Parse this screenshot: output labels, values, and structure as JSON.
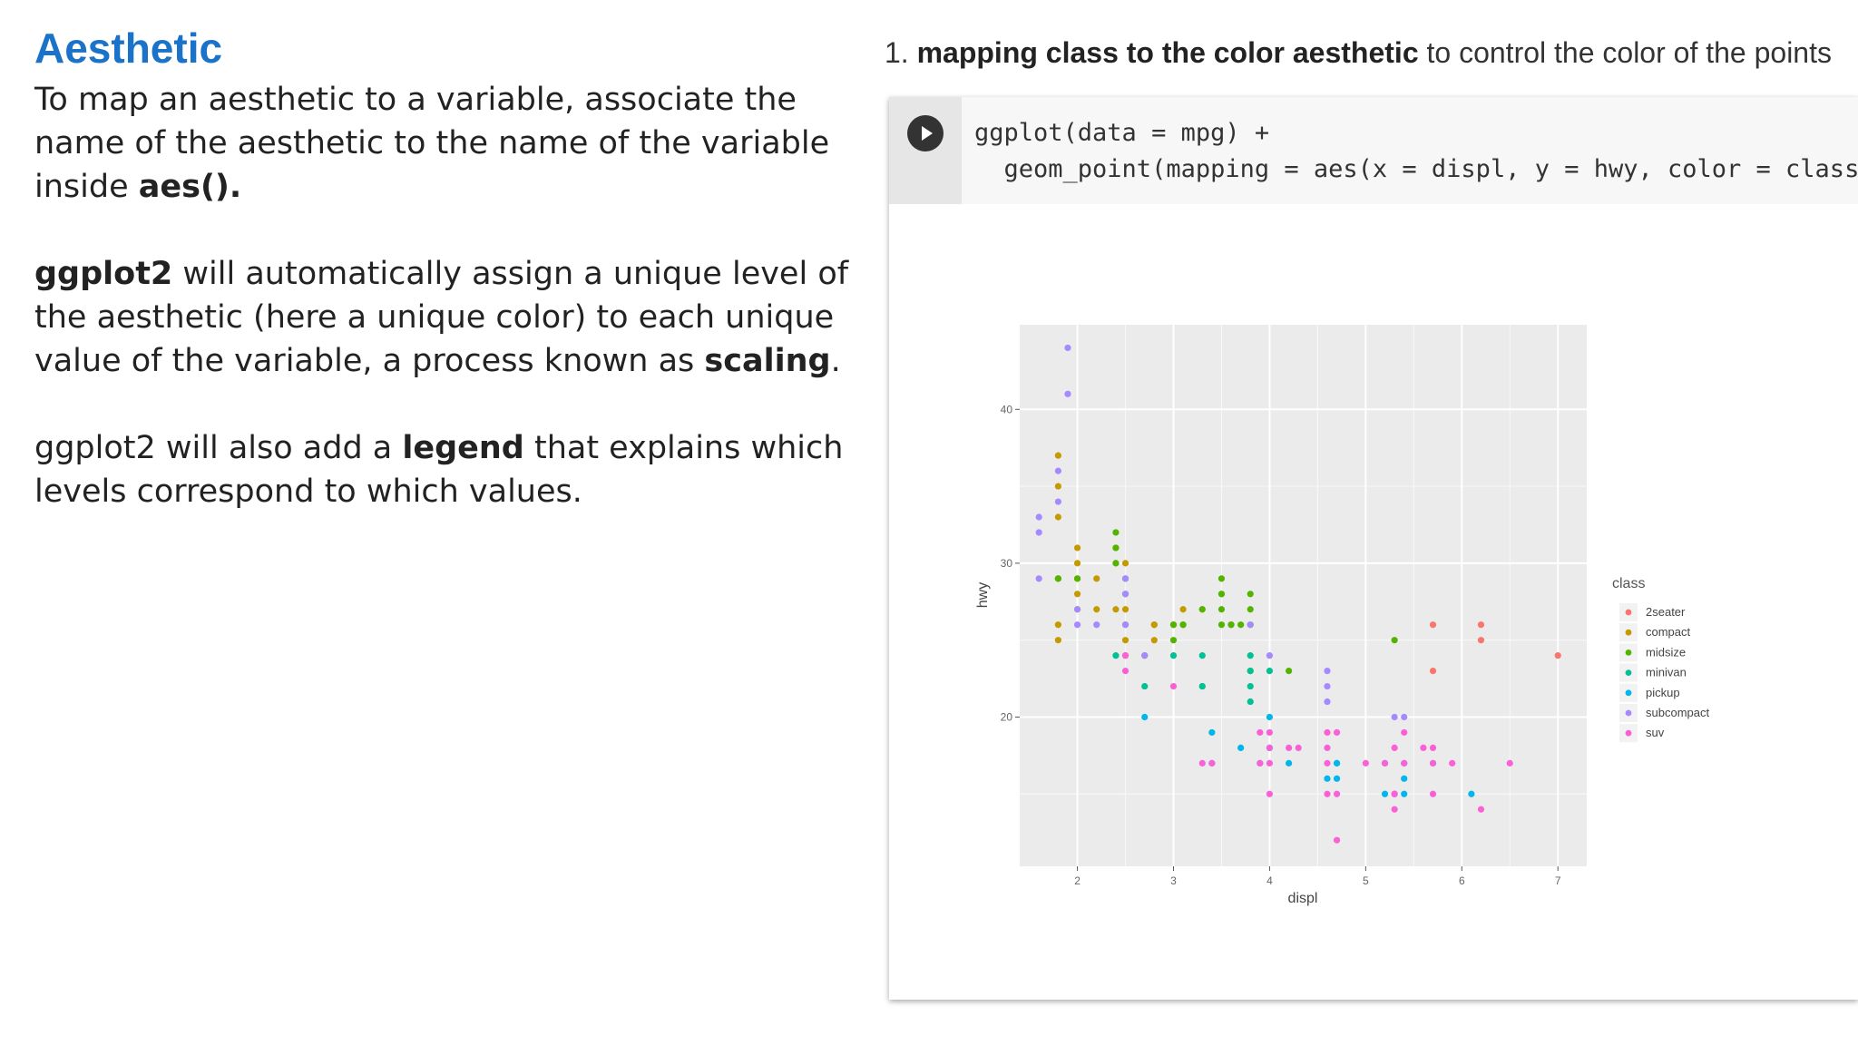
{
  "slide": {
    "title": "Aesthetic",
    "p1_text": "To map an aesthetic to a variable, associate the name of the aesthetic to the name of the variable inside ",
    "p1_bold": "aes().",
    "p2_bold": "ggplot2",
    "p2_text_a": " will automatically assign a unique level of the aesthetic (here a unique color) to each unique value of the variable, a process known as ",
    "p2_bold_b": "scaling",
    "p2_text_b": ".",
    "p3_text_a": "ggplot2 will also add a ",
    "p3_bold": "legend",
    "p3_text_b": " that explains which levels correspond to which values."
  },
  "caption": {
    "number": "1. ",
    "bold": "mapping class to the color aesthetic",
    "rest": " to control the color of the points"
  },
  "code": {
    "line1": "ggplot(data = mpg) +",
    "line2": "  geom_point(mapping = aes(x = displ, y = hwy, color = class))"
  },
  "colors": {
    "2seater": "#F8766D",
    "compact": "#C49A00",
    "midsize": "#53B400",
    "minivan": "#00C094",
    "pickup": "#00B6EB",
    "subcompact": "#A58AFF",
    "suv": "#FB61D7"
  },
  "chart_data": {
    "type": "scatter",
    "xlabel": "displ",
    "ylabel": "hwy",
    "xlim": [
      1.4,
      7.3
    ],
    "ylim": [
      10.3,
      45.5
    ],
    "x_ticks": [
      2,
      3,
      4,
      5,
      6,
      7
    ],
    "y_ticks": [
      20,
      30,
      40
    ],
    "grid": true,
    "legend_title": "class",
    "legend_position": "right",
    "series": [
      {
        "name": "2seater",
        "points": [
          [
            5.7,
            26
          ],
          [
            5.7,
            23
          ],
          [
            6.2,
            26
          ],
          [
            6.2,
            25
          ],
          [
            7.0,
            24
          ]
        ]
      },
      {
        "name": "compact",
        "points": [
          [
            1.8,
            29
          ],
          [
            1.8,
            29
          ],
          [
            2.0,
            31
          ],
          [
            2.0,
            30
          ],
          [
            2.8,
            26
          ],
          [
            2.8,
            26
          ],
          [
            3.1,
            27
          ],
          [
            1.8,
            26
          ],
          [
            1.8,
            25
          ],
          [
            2.0,
            28
          ],
          [
            2.0,
            27
          ],
          [
            2.8,
            25
          ],
          [
            2.4,
            31
          ],
          [
            2.4,
            30
          ],
          [
            2.5,
            25
          ],
          [
            2.5,
            27
          ],
          [
            2.2,
            27
          ],
          [
            2.5,
            30
          ],
          [
            2.2,
            29
          ],
          [
            2.4,
            27
          ],
          [
            3.0,
            26
          ],
          [
            3.3,
            27
          ],
          [
            1.8,
            33
          ],
          [
            1.8,
            35
          ],
          [
            1.8,
            37
          ],
          [
            2.0,
            29
          ],
          [
            2.5,
            24
          ]
        ]
      },
      {
        "name": "midsize",
        "points": [
          [
            2.4,
            31
          ],
          [
            2.4,
            32
          ],
          [
            3.1,
            26
          ],
          [
            3.5,
            29
          ],
          [
            3.6,
            26
          ],
          [
            3.8,
            28
          ],
          [
            3.5,
            26
          ],
          [
            3.5,
            28
          ],
          [
            3.1,
            26
          ],
          [
            3.8,
            27
          ],
          [
            3.8,
            26
          ],
          [
            3.7,
            26
          ],
          [
            2.5,
            26
          ],
          [
            2.5,
            28
          ],
          [
            3.5,
            27
          ],
          [
            2.0,
            29
          ],
          [
            2.4,
            30
          ],
          [
            2.5,
            29
          ],
          [
            1.8,
            29
          ],
          [
            3.0,
            26
          ],
          [
            3.5,
            28
          ],
          [
            3.0,
            25
          ],
          [
            2.7,
            24
          ],
          [
            3.8,
            23
          ],
          [
            4.2,
            23
          ],
          [
            5.3,
            25
          ],
          [
            3.6,
            26
          ],
          [
            3.3,
            27
          ]
        ]
      },
      {
        "name": "minivan",
        "points": [
          [
            2.4,
            24
          ],
          [
            3.0,
            24
          ],
          [
            3.3,
            22
          ],
          [
            3.3,
            24
          ],
          [
            3.8,
            22
          ],
          [
            3.8,
            21
          ],
          [
            4.0,
            23
          ],
          [
            3.8,
            23
          ],
          [
            3.3,
            22
          ],
          [
            3.8,
            24
          ],
          [
            2.7,
            22
          ]
        ]
      },
      {
        "name": "pickup",
        "points": [
          [
            2.7,
            20
          ],
          [
            3.4,
            19
          ],
          [
            3.4,
            17
          ],
          [
            3.7,
            18
          ],
          [
            4.0,
            20
          ],
          [
            4.7,
            17
          ],
          [
            4.7,
            16
          ],
          [
            5.2,
            17
          ],
          [
            5.2,
            15
          ],
          [
            5.7,
            17
          ],
          [
            6.1,
            15
          ],
          [
            4.7,
            17
          ],
          [
            4.0,
            18
          ],
          [
            4.2,
            17
          ],
          [
            4.6,
            16
          ],
          [
            5.4,
            17
          ],
          [
            5.4,
            15
          ],
          [
            5.3,
            15
          ],
          [
            5.4,
            16
          ],
          [
            3.9,
            17
          ]
        ]
      },
      {
        "name": "subcompact",
        "points": [
          [
            1.6,
            33
          ],
          [
            1.6,
            32
          ],
          [
            1.6,
            29
          ],
          [
            1.8,
            34
          ],
          [
            1.8,
            36
          ],
          [
            1.9,
            44
          ],
          [
            1.9,
            41
          ],
          [
            2.0,
            26
          ],
          [
            2.0,
            27
          ],
          [
            2.2,
            26
          ],
          [
            2.5,
            26
          ],
          [
            2.5,
            28
          ],
          [
            2.5,
            29
          ],
          [
            2.7,
            24
          ],
          [
            3.8,
            26
          ],
          [
            4.0,
            24
          ],
          [
            4.6,
            23
          ],
          [
            4.6,
            22
          ],
          [
            4.6,
            21
          ],
          [
            5.4,
            20
          ],
          [
            5.3,
            20
          ]
        ]
      },
      {
        "name": "suv",
        "points": [
          [
            5.7,
            17
          ],
          [
            5.3,
            14
          ],
          [
            5.3,
            18
          ],
          [
            5.7,
            18
          ],
          [
            6.5,
            17
          ],
          [
            4.0,
            15
          ],
          [
            4.0,
            17
          ],
          [
            4.6,
            18
          ],
          [
            4.6,
            17
          ],
          [
            4.7,
            12
          ],
          [
            5.4,
            19
          ],
          [
            5.3,
            15
          ],
          [
            5.6,
            18
          ],
          [
            5.9,
            17
          ],
          [
            6.2,
            14
          ],
          [
            5.7,
            15
          ],
          [
            2.5,
            23
          ],
          [
            3.0,
            22
          ],
          [
            2.5,
            24
          ],
          [
            3.3,
            17
          ],
          [
            3.9,
            19
          ],
          [
            4.2,
            18
          ],
          [
            4.3,
            18
          ],
          [
            4.6,
            15
          ],
          [
            4.7,
            19
          ],
          [
            4.0,
            19
          ],
          [
            5.0,
            17
          ],
          [
            5.4,
            17
          ],
          [
            3.4,
            17
          ],
          [
            4.0,
            18
          ],
          [
            4.7,
            15
          ],
          [
            5.3,
            15
          ],
          [
            3.9,
            17
          ],
          [
            4.6,
            19
          ],
          [
            5.2,
            17
          ]
        ]
      }
    ]
  }
}
